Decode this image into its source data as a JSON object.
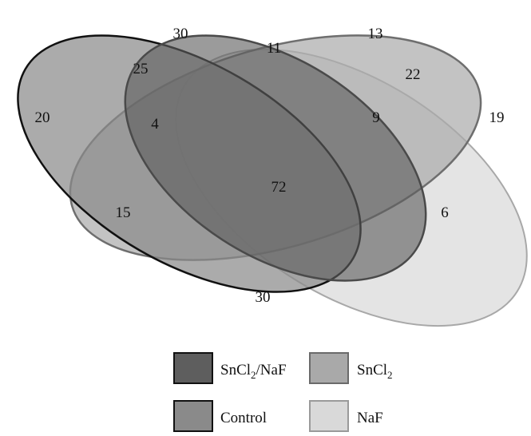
{
  "sets": [
    {
      "key": "control",
      "fill": "#8a8a8a",
      "stroke": "#111111"
    },
    {
      "key": "sncl2_naf",
      "fill": "#5e5e5e",
      "stroke": "#4a4a4a"
    },
    {
      "key": "sncl2",
      "fill": "#a9a9a9",
      "stroke": "#6e6e6e"
    },
    {
      "key": "naf",
      "fill": "#d9d9d9",
      "stroke": "#a8a8a8"
    }
  ],
  "regions": [
    {
      "id": "control-only",
      "value": "20"
    },
    {
      "id": "control-sncl2naf",
      "value": "25"
    },
    {
      "id": "control-sncl2naf-sncl2",
      "value": "4"
    },
    {
      "id": "sncl2naf-only",
      "value": "30"
    },
    {
      "id": "sncl2naf-sncl2",
      "value": "11"
    },
    {
      "id": "sncl2-only",
      "value": "13"
    },
    {
      "id": "sncl2-naf",
      "value": "22"
    },
    {
      "id": "sncl2naf-sncl2-naf",
      "value": "9"
    },
    {
      "id": "naf-only",
      "value": "19"
    },
    {
      "id": "all-four",
      "value": "72"
    },
    {
      "id": "control-sncl2-naf",
      "value": "15"
    },
    {
      "id": "sncl2naf-naf",
      "value": "6"
    },
    {
      "id": "control-naf",
      "value": "30"
    }
  ],
  "legend": [
    {
      "key": "sncl2_naf",
      "prefix": "SnCl",
      "sub": "2",
      "suffix": "/NaF",
      "fill": "#5e5e5e"
    },
    {
      "key": "sncl2",
      "prefix": "SnCl",
      "sub": "2",
      "suffix": "",
      "fill": "#a9a9a9"
    },
    {
      "key": "control",
      "prefix": "Control",
      "sub": "",
      "suffix": "",
      "fill": "#8a8a8a"
    },
    {
      "key": "naf",
      "prefix": "NaF",
      "sub": "",
      "suffix": "",
      "fill": "#d9d9d9"
    }
  ]
}
